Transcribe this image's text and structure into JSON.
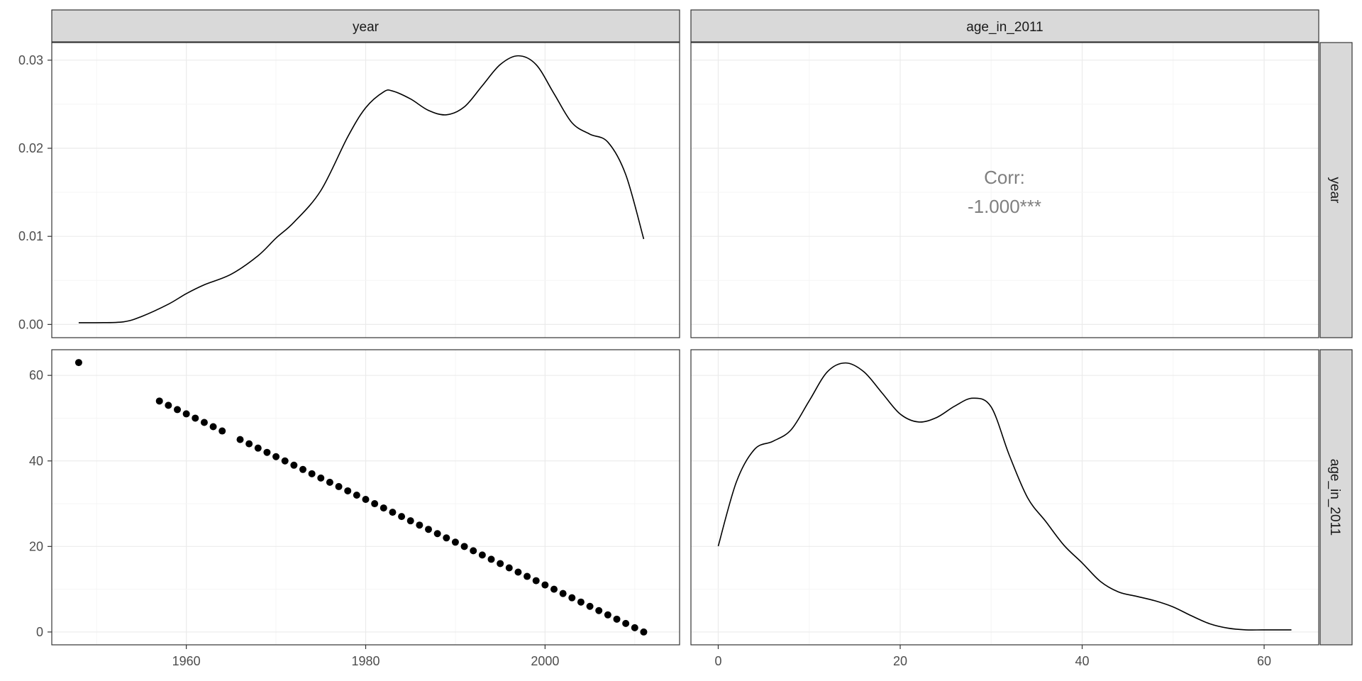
{
  "strips": {
    "col1": "year",
    "col2": "age_in_2011",
    "row1": "year",
    "row2": "age_in_2011"
  },
  "correlation": {
    "label": "Corr:",
    "value": "-1.000***"
  },
  "colors": {
    "strip_fill": "#d9d9d9",
    "grid_major": "#ebebeb",
    "grid_minor": "#f5f5f5",
    "line": "#000000",
    "points": "#000000",
    "corr_text": "#7f7f7f"
  },
  "chart_data": [
    {
      "type": "line",
      "panel": "year density",
      "x_variable": "year",
      "xlim": [
        1945,
        2015
      ],
      "ylim": [
        -0.0015,
        0.032
      ],
      "x_ticks": [
        1960,
        1980,
        2000
      ],
      "y_ticks": [
        0.0,
        0.01,
        0.02,
        0.03
      ],
      "y_tick_labels": [
        "0.00",
        "0.01",
        "0.02",
        "0.03"
      ],
      "grid": true,
      "x": [
        1948,
        1950,
        1953,
        1955,
        1958,
        1960,
        1962,
        1965,
        1968,
        1970,
        1972,
        1975,
        1978,
        1980,
        1982,
        1983,
        1985,
        1987,
        1989,
        1991,
        1993,
        1995,
        1997,
        1999,
        2001,
        2003,
        2005,
        2007,
        2009,
        2011
      ],
      "y": [
        0.0002,
        0.0002,
        0.0003,
        0.0009,
        0.0023,
        0.0035,
        0.0045,
        0.0057,
        0.0078,
        0.0098,
        0.0116,
        0.0152,
        0.0213,
        0.0246,
        0.0264,
        0.0265,
        0.0256,
        0.0243,
        0.0238,
        0.0247,
        0.0271,
        0.0295,
        0.0305,
        0.0295,
        0.0262,
        0.0229,
        0.0216,
        0.0207,
        0.017,
        0.0097
      ]
    },
    {
      "type": "scatter",
      "panel": "age_in_2011 vs year",
      "x_variable": "year",
      "y_variable": "age_in_2011",
      "xlim": [
        1945,
        2015
      ],
      "ylim": [
        -3,
        66
      ],
      "x_ticks": [
        1960,
        1980,
        2000
      ],
      "y_ticks": [
        0,
        20,
        40,
        60
      ],
      "grid": true,
      "x": [
        1948,
        1957,
        1958,
        1959,
        1960,
        1961,
        1962,
        1963,
        1964,
        1966,
        1967,
        1968,
        1969,
        1970,
        1971,
        1972,
        1973,
        1974,
        1975,
        1976,
        1977,
        1978,
        1979,
        1980,
        1981,
        1982,
        1983,
        1984,
        1985,
        1986,
        1987,
        1988,
        1989,
        1990,
        1991,
        1992,
        1993,
        1994,
        1995,
        1996,
        1997,
        1998,
        1999,
        2000,
        2001,
        2002,
        2003,
        2004,
        2005,
        2006,
        2007,
        2008,
        2009,
        2010,
        2011
      ],
      "y": [
        63,
        54,
        53,
        52,
        51,
        50,
        49,
        48,
        47,
        45,
        44,
        43,
        42,
        41,
        40,
        39,
        38,
        37,
        36,
        35,
        34,
        33,
        32,
        31,
        30,
        29,
        28,
        27,
        26,
        25,
        24,
        23,
        22,
        21,
        20,
        19,
        18,
        17,
        16,
        15,
        14,
        13,
        12,
        11,
        10,
        9,
        8,
        7,
        6,
        5,
        4,
        3,
        2,
        1,
        0
      ]
    },
    {
      "type": "line",
      "panel": "age_in_2011 density",
      "x_variable": "age_in_2011",
      "xlim": [
        -3,
        66
      ],
      "x_ticks": [
        0,
        20,
        40,
        60
      ],
      "grid": true,
      "x": [
        0,
        2,
        4,
        6,
        8,
        10,
        12,
        14,
        16,
        18,
        20,
        22,
        24,
        26,
        28,
        30,
        32,
        34,
        36,
        38,
        40,
        42,
        44,
        46,
        48,
        50,
        52,
        54,
        56,
        58,
        60,
        63
      ],
      "y": [
        0.0097,
        0.017,
        0.0207,
        0.0216,
        0.0229,
        0.0262,
        0.0295,
        0.0305,
        0.0295,
        0.0271,
        0.0247,
        0.0238,
        0.0243,
        0.0256,
        0.0265,
        0.0255,
        0.02,
        0.0152,
        0.0125,
        0.0098,
        0.0078,
        0.0057,
        0.0045,
        0.004,
        0.0035,
        0.0028,
        0.0018,
        0.0009,
        0.0004,
        0.0002,
        0.0002,
        0.0002
      ],
      "ylim": [
        -0.0015,
        0.032
      ]
    }
  ]
}
